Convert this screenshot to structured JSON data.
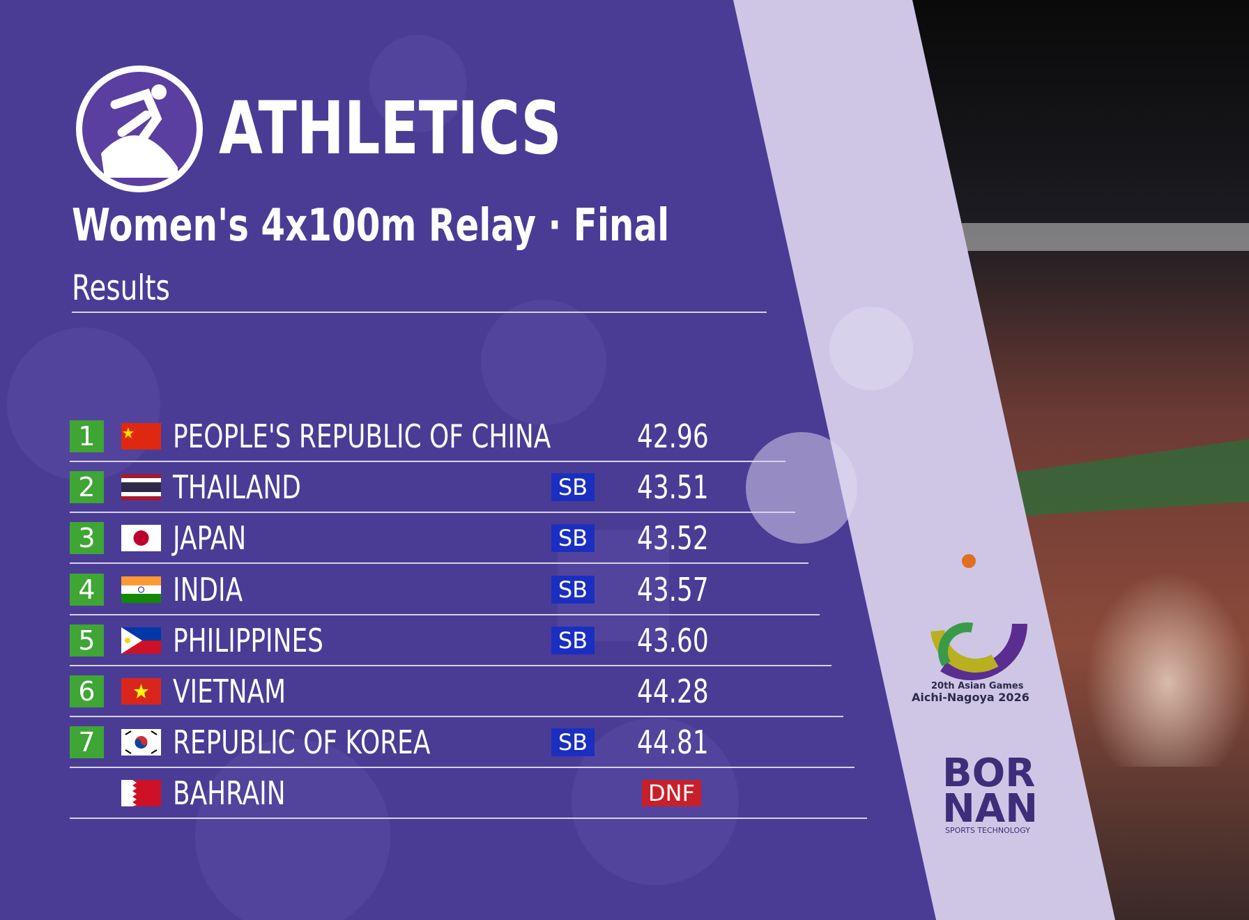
{
  "header": {
    "sport": "ATHLETICS",
    "event": "Women's 4x100m Relay · Final",
    "subtitle": "Results"
  },
  "table": {
    "rows": [
      {
        "rank": 1,
        "country": "PEOPLE'S REPUBLIC OF CHINA",
        "result": "42.96"
      },
      {
        "rank": 2,
        "country": "THAILAND",
        "note": "SB",
        "result": "43.51"
      },
      {
        "rank": 3,
        "country": "JAPAN",
        "note": "SB",
        "result": "43.52"
      },
      {
        "rank": 4,
        "country": "INDIA",
        "note": "SB",
        "result": "43.57"
      },
      {
        "rank": 5,
        "country": "PHILIPPINES",
        "note": "SB",
        "result": "43.60"
      },
      {
        "rank": 6,
        "country": "VIETNAM",
        "result": "44.28"
      },
      {
        "rank": 7,
        "country": "REPUBLIC OF KOREA",
        "note": "SB",
        "result": "44.81"
      },
      {
        "country": "BAHRAIN",
        "result": "DNF"
      }
    ]
  },
  "games_logo": {
    "line1": "20th Asian Games",
    "line2": "Aichi-Nagoya 2026"
  },
  "sponsor": {
    "line1": "BOR",
    "line2": "NAN",
    "tagline": "SPORTS TECHNOLOGY"
  }
}
